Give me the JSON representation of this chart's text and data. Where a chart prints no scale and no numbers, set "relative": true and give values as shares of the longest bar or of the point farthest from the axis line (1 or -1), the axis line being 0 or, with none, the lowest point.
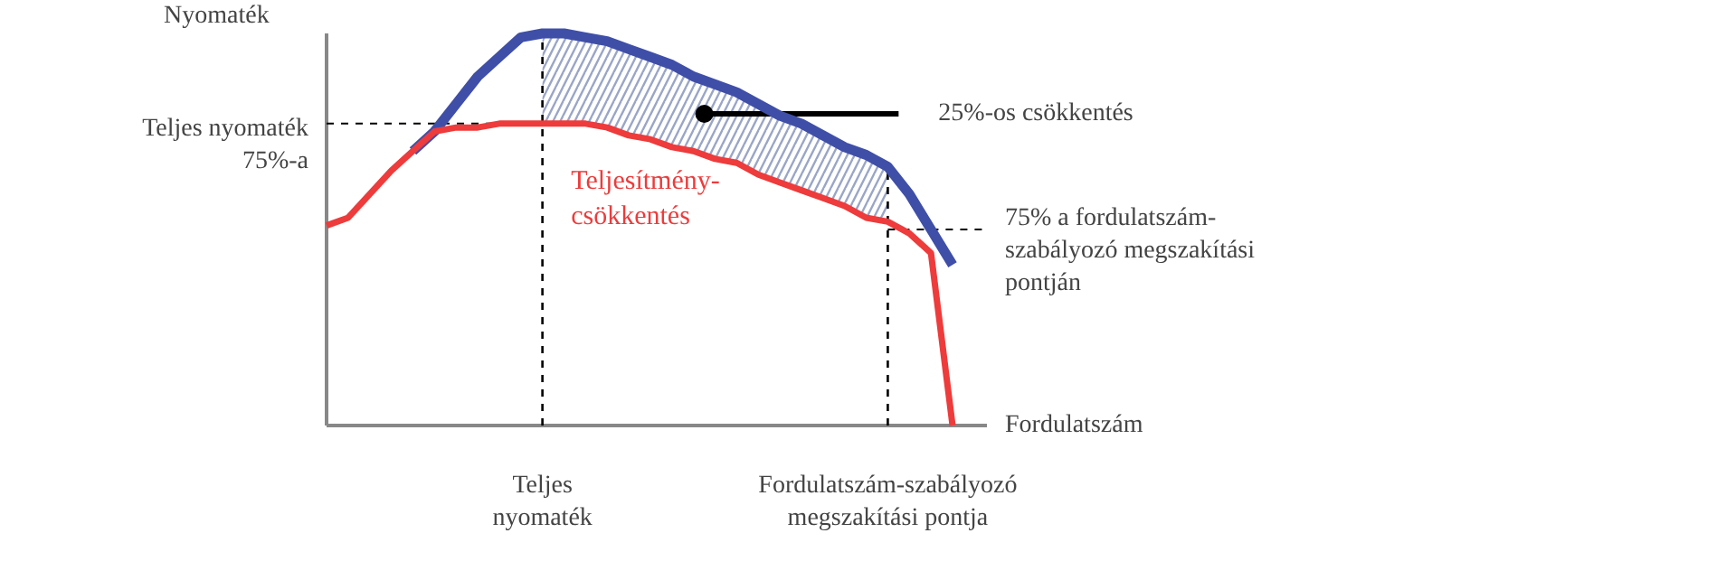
{
  "chart_data": {
    "type": "line",
    "relative": true,
    "xlabel": "Fordulatszám",
    "ylabel": "Nyomaték",
    "marker": "none",
    "line_style": "solid",
    "categories": [
      null,
      null,
      null,
      null,
      null,
      null,
      null,
      null,
      null,
      null,
      null,
      null,
      null,
      null,
      null,
      null,
      null,
      null,
      null,
      null,
      null,
      null,
      null,
      null,
      null,
      null,
      null,
      null,
      null,
      null
    ],
    "series": [
      {
        "color": "#3f4fa8",
        "values": [
          null,
          null,
          null,
          null,
          0.7,
          0.75,
          0.82,
          0.89,
          0.94,
          0.99,
          1.0,
          1.0,
          0.99,
          0.98,
          0.96,
          0.94,
          0.92,
          0.89,
          0.87,
          0.85,
          0.82,
          0.79,
          0.77,
          0.74,
          0.71,
          0.69,
          0.66,
          0.59,
          0.5,
          0.41
        ],
        "lower": [
          null,
          null,
          null,
          null,
          null,
          null,
          null,
          null,
          null,
          null,
          0.77,
          0.77,
          0.77,
          0.76,
          0.74,
          0.73,
          0.71,
          0.7,
          0.68,
          0.67,
          0.64,
          0.62,
          0.6,
          0.58,
          0.56,
          0.53,
          0.52,
          null,
          null,
          null
        ],
        "upper": [
          null,
          null,
          null,
          null,
          null,
          null,
          null,
          null,
          null,
          null,
          1.0,
          1.0,
          0.99,
          0.98,
          0.96,
          0.94,
          0.92,
          0.89,
          0.87,
          0.85,
          0.82,
          0.79,
          0.77,
          0.74,
          0.71,
          0.69,
          0.66,
          null,
          null,
          null
        ]
      },
      {
        "name": "Teljesítmény-\ncsökkentés",
        "color": "#ee3b3b",
        "values": [
          0.51,
          0.53,
          0.59,
          0.65,
          0.7,
          0.75,
          0.76,
          0.76,
          0.77,
          0.77,
          0.77,
          0.77,
          0.77,
          0.76,
          0.74,
          0.73,
          0.71,
          0.7,
          0.68,
          0.67,
          0.64,
          0.62,
          0.6,
          0.58,
          0.56,
          0.53,
          0.52,
          0.49,
          0.44,
          0
        ]
      }
    ],
    "ref_lines": [
      {
        "axis": "y",
        "value": 0.77,
        "label": "Teljes nyomaték\n75%-a",
        "color": "#000000",
        "line_style": "dashed"
      },
      {
        "axis": "y",
        "value": 0.5,
        "label": "75% a fordulatszám-\nszabályozó megszakítási\npontján",
        "color": "#000000",
        "line_style": "dashed"
      }
    ],
    "annotations": [
      "25%-os csökkentés",
      "Teljes\nnyomaték",
      "Fordulatszám-szabályozó\nmegszakítási pontja"
    ]
  }
}
